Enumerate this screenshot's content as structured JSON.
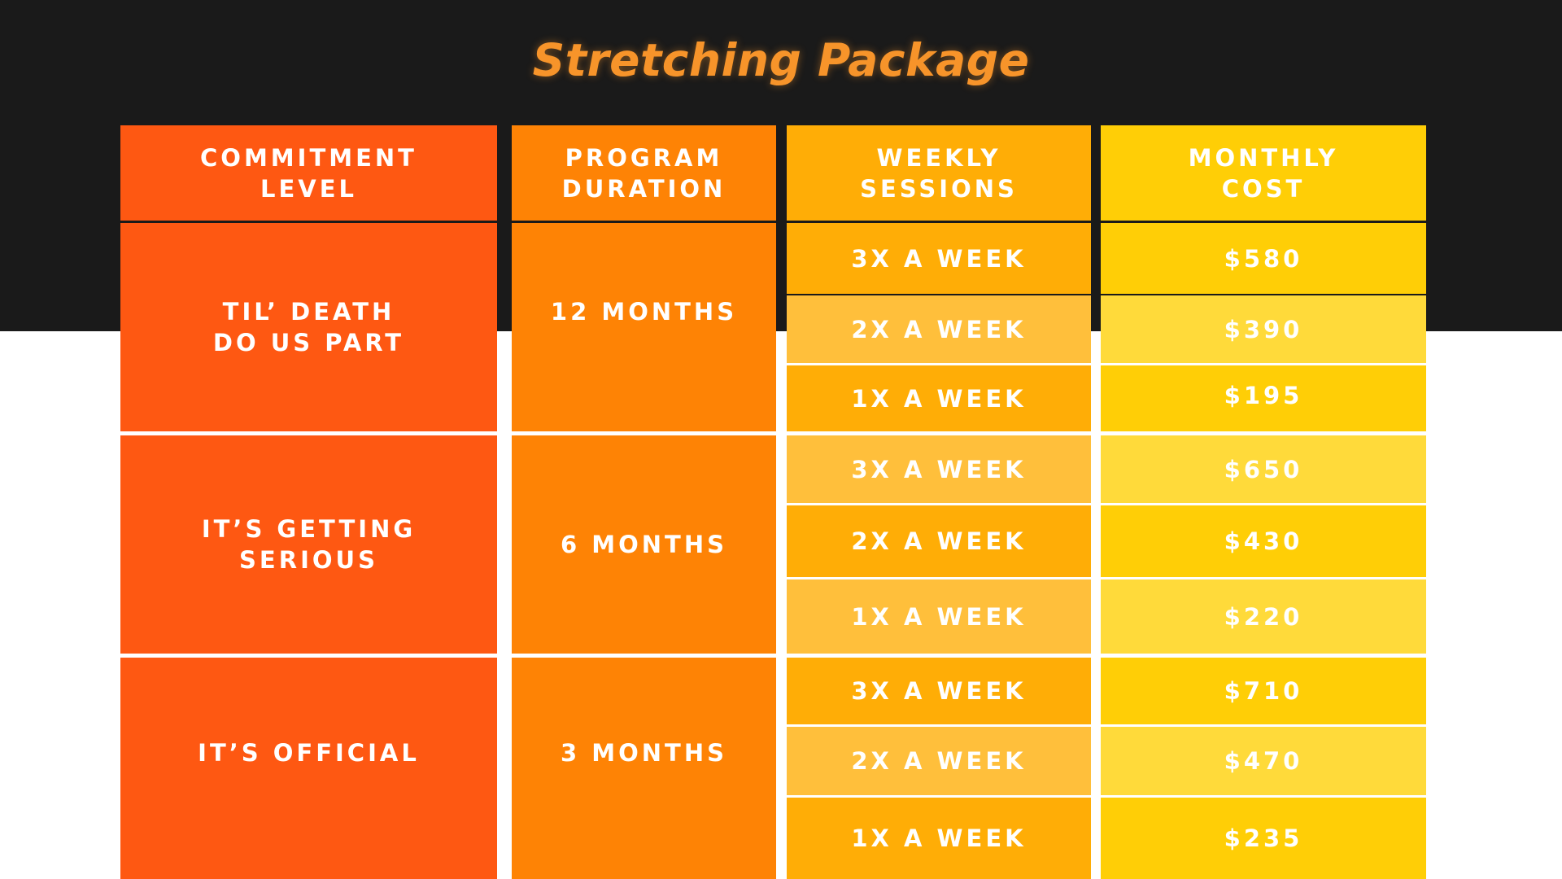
{
  "title": "Stretching Package",
  "colors": {
    "background_dark": "#1a1a1a",
    "title": "#f7942a",
    "commitment_column": "#fe5812",
    "duration_column": "#fe8305",
    "sessions_dark": "#ffad06",
    "sessions_light": "#ffbf3b",
    "cost_dark": "#ffce06",
    "cost_light": "#ffda3a"
  },
  "table": {
    "headers": [
      {
        "line1": "COMMITMENT",
        "line2": "LEVEL"
      },
      {
        "line1": "PROGRAM",
        "line2": "DURATION"
      },
      {
        "line1": "WEEKLY",
        "line2": "SESSIONS"
      },
      {
        "line1": "MONTHLY",
        "line2": "COST"
      }
    ],
    "packages": [
      {
        "commitment_line1": "TIL’ DEATH",
        "commitment_line2": "DO US PART",
        "duration": "12 MONTHS",
        "options": [
          {
            "sessions": "3X A WEEK",
            "cost": "$580"
          },
          {
            "sessions": "2X A WEEK",
            "cost": "$390"
          },
          {
            "sessions": "1X A WEEK",
            "cost": "$195"
          }
        ]
      },
      {
        "commitment_line1": "IT’S GETTING",
        "commitment_line2": "SERIOUS",
        "duration": "6 MONTHS",
        "options": [
          {
            "sessions": "3X A WEEK",
            "cost": "$650"
          },
          {
            "sessions": "2X A WEEK",
            "cost": "$430"
          },
          {
            "sessions": "1X A WEEK",
            "cost": "$220"
          }
        ]
      },
      {
        "commitment_line1": "IT’S OFFICIAL",
        "commitment_line2": "",
        "duration": "3 MONTHS",
        "options": [
          {
            "sessions": "3X A WEEK",
            "cost": "$710"
          },
          {
            "sessions": "2X A WEEK",
            "cost": "$470"
          },
          {
            "sessions": "1X A WEEK",
            "cost": "$235"
          }
        ]
      }
    ]
  }
}
